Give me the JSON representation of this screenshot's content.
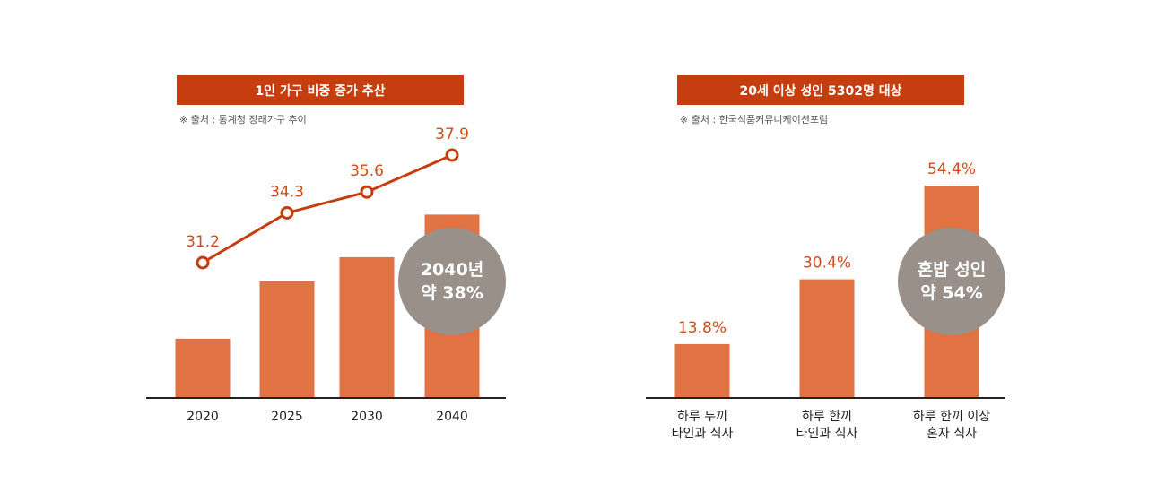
{
  "chart_data": [
    {
      "type": "bar",
      "title": "1인 가구 비중 증가 추산",
      "source": "※ 출처 : 통계청 장래가구 추이",
      "categories": [
        "2020",
        "2025",
        "2030",
        "2040"
      ],
      "values": [
        31.2,
        34.3,
        35.6,
        37.9
      ],
      "value_labels": [
        "31.2",
        "34.3",
        "35.6",
        "37.9"
      ],
      "overlay": "line with circle markers through the same values",
      "ylim": [
        28,
        40
      ],
      "grid": false,
      "callout": {
        "line1": "2040년",
        "line2": "약 38%"
      },
      "colors": {
        "bar": "#e07243",
        "line": "#c63d0f",
        "title_bg": "#c63d0f",
        "callout": "#989089"
      }
    },
    {
      "type": "bar",
      "title": "20세 이상 성인 5302명 대상",
      "source": "※ 출처 : 한국식품커뮤니케이션포럼",
      "categories": [
        [
          "하루 두끼",
          "타인과 식사"
        ],
        [
          "하루 한끼",
          "타인과 식사"
        ],
        [
          "하루 한끼 이상",
          "혼자 식사"
        ]
      ],
      "values": [
        13.8,
        30.4,
        54.4
      ],
      "value_labels": [
        "13.8%",
        "30.4%",
        "54.4%"
      ],
      "ylim": [
        0,
        62
      ],
      "grid": false,
      "callout": {
        "line1": "혼밥 성인",
        "line2": "약 54%"
      },
      "colors": {
        "bar": "#e07243",
        "title_bg": "#c63d0f",
        "callout": "#989089"
      }
    }
  ]
}
